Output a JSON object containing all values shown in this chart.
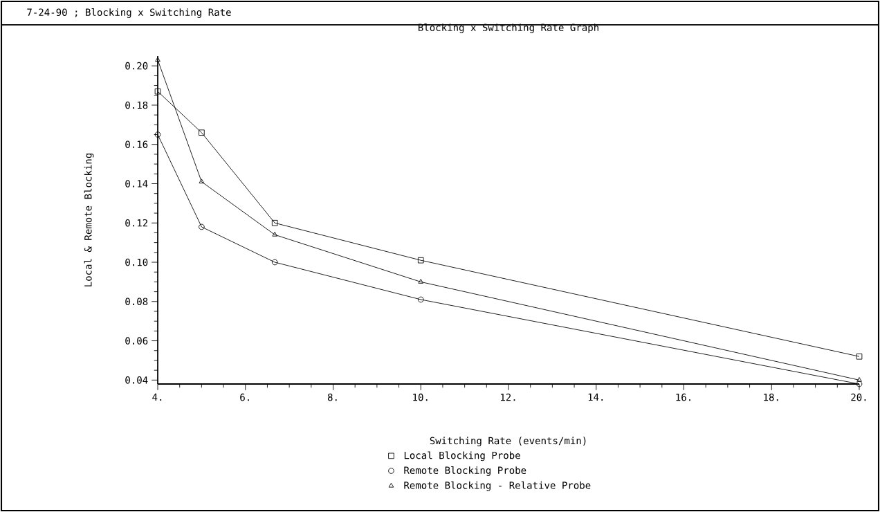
{
  "chart_data": {
    "type": "line",
    "title": "Blocking x Switching Rate Graph",
    "xlabel": "Switching Rate (events/min)",
    "ylabel": "Local & Remote Blocking",
    "annotations": [
      "7-24-90 ; Blocking x Switching Rate"
    ],
    "x": [
      4,
      5,
      6.67,
      10,
      20
    ],
    "series": [
      {
        "name": "Local Blocking Probe",
        "color": "#000000",
        "marker": "square",
        "values": [
          0.187,
          0.166,
          0.12,
          0.101,
          0.052
        ]
      },
      {
        "name": "Remote Blocking Probe",
        "color": "#000000",
        "marker": "circle",
        "values": [
          0.165,
          0.118,
          0.1,
          0.081,
          0.038
        ]
      },
      {
        "name": "Remote Blocking - Relative Probe",
        "color": "#000000",
        "marker": "triangle",
        "values": [
          0.203,
          0.141,
          0.114,
          0.09,
          0.04
        ]
      }
    ],
    "xlim": [
      4,
      20
    ],
    "ylim": [
      0.038,
      0.205
    ],
    "xticks": [
      {
        "value": 4,
        "label": "4."
      },
      {
        "value": 6,
        "label": "6."
      },
      {
        "value": 8,
        "label": "8."
      },
      {
        "value": 10,
        "label": "10."
      },
      {
        "value": 12,
        "label": "12."
      },
      {
        "value": 14,
        "label": "14."
      },
      {
        "value": 16,
        "label": "16."
      },
      {
        "value": 18,
        "label": "18."
      },
      {
        "value": 20,
        "label": "20."
      }
    ],
    "yticks": [
      {
        "value": 0.04,
        "label": "0.04"
      },
      {
        "value": 0.06,
        "label": "0.06"
      },
      {
        "value": 0.08,
        "label": "0.08"
      },
      {
        "value": 0.1,
        "label": "0.10"
      },
      {
        "value": 0.12,
        "label": "0.12"
      },
      {
        "value": 0.14,
        "label": "0.14"
      },
      {
        "value": 0.16,
        "label": "0.16"
      },
      {
        "value": 0.18,
        "label": "0.18"
      },
      {
        "value": 0.2,
        "label": "0.20"
      }
    ],
    "legend": "bottom",
    "line_style": "solid"
  }
}
